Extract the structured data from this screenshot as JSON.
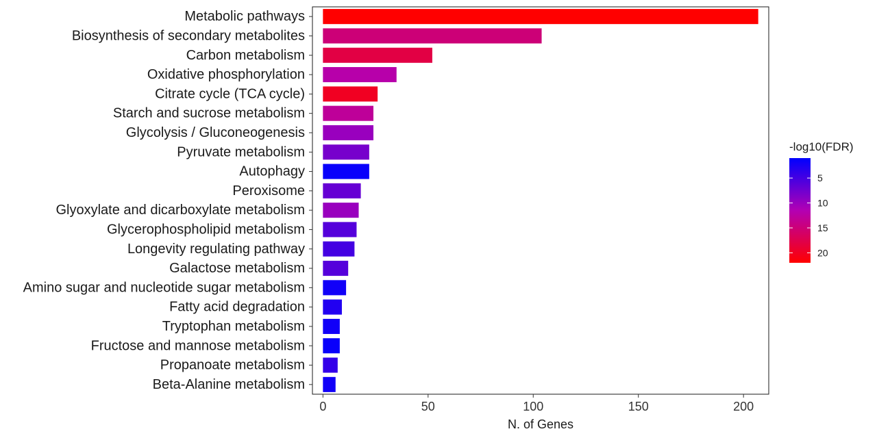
{
  "chart_data": {
    "type": "bar",
    "orientation": "horizontal",
    "xlabel": "N. of Genes",
    "ylabel": "",
    "xlim": [
      -5,
      212
    ],
    "x_ticks": [
      0,
      50,
      100,
      150,
      200
    ],
    "grid": false,
    "legend_position": "right",
    "color_scale": {
      "title": "-log10(FDR)",
      "min": 1,
      "max": 22,
      "ticks": [
        5,
        10,
        15,
        20
      ],
      "low_color": "#0000ff",
      "high_color": "#ff0000"
    },
    "categories": [
      "Metabolic pathways",
      "Biosynthesis of secondary metabolites",
      "Carbon metabolism",
      "Oxidative phosphorylation",
      "Citrate cycle (TCA cycle)",
      "Starch and sucrose metabolism",
      "Glycolysis / Gluconeogenesis",
      "Pyruvate metabolism",
      "Autophagy",
      "Peroxisome",
      "Glyoxylate and dicarboxylate metabolism",
      "Glycerophospholipid metabolism",
      "Longevity regulating pathway",
      "Galactose metabolism",
      "Amino sugar and nucleotide sugar metabolism",
      "Fatty acid degradation",
      "Tryptophan metabolism",
      "Fructose and mannose metabolism",
      "Propanoate metabolism",
      "Beta-Alanine metabolism"
    ],
    "values": [
      207,
      104,
      52,
      35,
      26,
      24,
      24,
      22,
      22,
      18,
      17,
      16,
      15,
      12,
      11,
      9,
      8,
      8,
      7,
      6
    ],
    "color_values": [
      22,
      15,
      18,
      12,
      20,
      13,
      10,
      8,
      1.5,
      7,
      10,
      6,
      5,
      6,
      2,
      3,
      2,
      1.5,
      4,
      2
    ]
  }
}
